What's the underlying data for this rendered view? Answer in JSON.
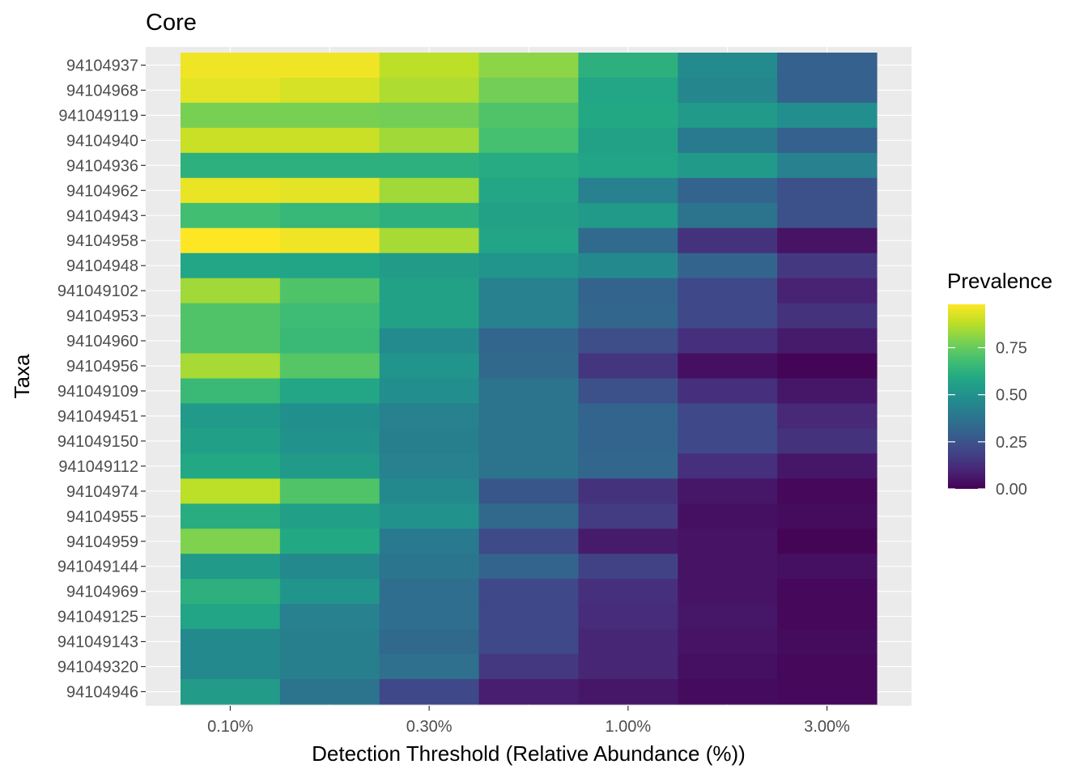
{
  "chart_data": {
    "type": "heatmap",
    "title": "Core",
    "xlabel": "Detection Threshold (Relative Abundance (%))",
    "ylabel": "Taxa",
    "x_ticks": [
      "0.10%",
      "0.30%",
      "1.00%",
      "3.00%"
    ],
    "x_scale": "log",
    "detection_thresholds_percent": [
      0.1,
      0.2,
      0.3,
      0.6,
      1.0,
      2.0,
      3.0
    ],
    "taxa": [
      "94104937",
      "94104968",
      "941049119",
      "94104940",
      "94104936",
      "94104962",
      "94104943",
      "94104958",
      "94104948",
      "941049102",
      "94104953",
      "94104960",
      "94104956",
      "941049109",
      "941049451",
      "941049150",
      "941049112",
      "94104974",
      "94104955",
      "94104959",
      "941049144",
      "94104969",
      "941049125",
      "941049143",
      "941049320",
      "94104946"
    ],
    "values": [
      [
        0.96,
        0.96,
        0.88,
        0.81,
        0.62,
        0.47,
        0.3
      ],
      [
        0.94,
        0.92,
        0.86,
        0.77,
        0.58,
        0.45,
        0.3
      ],
      [
        0.78,
        0.78,
        0.77,
        0.71,
        0.59,
        0.53,
        0.48
      ],
      [
        0.9,
        0.9,
        0.84,
        0.69,
        0.56,
        0.4,
        0.3
      ],
      [
        0.62,
        0.62,
        0.62,
        0.6,
        0.57,
        0.53,
        0.43
      ],
      [
        0.95,
        0.94,
        0.84,
        0.58,
        0.43,
        0.31,
        0.24
      ],
      [
        0.68,
        0.65,
        0.62,
        0.56,
        0.53,
        0.37,
        0.24
      ],
      [
        0.98,
        0.96,
        0.85,
        0.57,
        0.34,
        0.14,
        0.05
      ],
      [
        0.58,
        0.57,
        0.54,
        0.51,
        0.46,
        0.31,
        0.16
      ],
      [
        0.84,
        0.71,
        0.56,
        0.43,
        0.31,
        0.21,
        0.09
      ],
      [
        0.71,
        0.67,
        0.56,
        0.43,
        0.32,
        0.21,
        0.14
      ],
      [
        0.71,
        0.66,
        0.47,
        0.32,
        0.23,
        0.13,
        0.07
      ],
      [
        0.85,
        0.72,
        0.51,
        0.33,
        0.15,
        0.04,
        0.01
      ],
      [
        0.66,
        0.58,
        0.48,
        0.37,
        0.24,
        0.13,
        0.06
      ],
      [
        0.53,
        0.49,
        0.43,
        0.37,
        0.31,
        0.21,
        0.11
      ],
      [
        0.55,
        0.5,
        0.42,
        0.37,
        0.31,
        0.21,
        0.14
      ],
      [
        0.59,
        0.53,
        0.43,
        0.37,
        0.32,
        0.13,
        0.06
      ],
      [
        0.88,
        0.71,
        0.46,
        0.26,
        0.14,
        0.06,
        0.02
      ],
      [
        0.61,
        0.55,
        0.5,
        0.33,
        0.17,
        0.04,
        0.03
      ],
      [
        0.79,
        0.59,
        0.4,
        0.22,
        0.07,
        0.05,
        0.01
      ],
      [
        0.53,
        0.46,
        0.38,
        0.31,
        0.19,
        0.05,
        0.04
      ],
      [
        0.62,
        0.51,
        0.35,
        0.21,
        0.13,
        0.05,
        0.02
      ],
      [
        0.57,
        0.43,
        0.35,
        0.21,
        0.12,
        0.06,
        0.02
      ],
      [
        0.46,
        0.42,
        0.33,
        0.21,
        0.1,
        0.05,
        0.03
      ],
      [
        0.46,
        0.42,
        0.36,
        0.16,
        0.1,
        0.04,
        0.02
      ],
      [
        0.54,
        0.37,
        0.21,
        0.08,
        0.06,
        0.03,
        0.02
      ]
    ],
    "value_range": [
      0,
      0.98
    ],
    "legend": {
      "title": "Prevalence",
      "ticks": [
        "0.00",
        "0.25",
        "0.50",
        "0.75"
      ],
      "tick_values": [
        0,
        0.25,
        0.5,
        0.75
      ],
      "placement": "right",
      "colormap": "viridis"
    },
    "grid": true,
    "panel_background": "#ebebeb"
  }
}
